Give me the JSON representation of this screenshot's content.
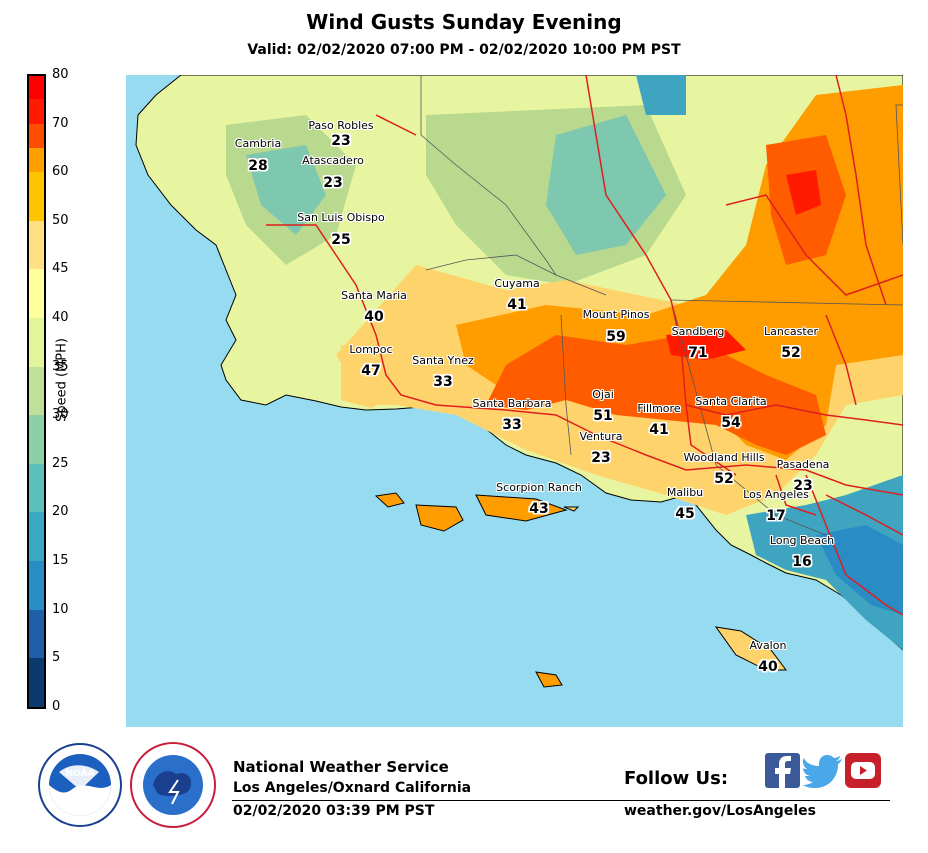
{
  "title": "Wind Gusts Sunday Evening",
  "subtitle": "Valid: 02/02/2020 07:00 PM - 02/02/2020 10:00 PM PST",
  "legend": {
    "unit_label": "Speed (MPH)",
    "ticks": [
      "0",
      "5",
      "10",
      "15",
      "20",
      "25",
      "30",
      "35",
      "40",
      "45",
      "50",
      "60",
      "70",
      "80"
    ],
    "colors": [
      "#0b3a6e",
      "#1f5fa8",
      "#2a8cc4",
      "#3aa9c4",
      "#5ec0bb",
      "#8fcfa8",
      "#bfe09a",
      "#e3f59a",
      "#ffff9e",
      "#ffe082",
      "#ffc400",
      "#ffa000",
      "#ff6000",
      "#ff1a00"
    ]
  },
  "map": {
    "colors": {
      "ocean": "#96dbef",
      "land_light": "#e8f5a0",
      "land_pale": "#ffff99",
      "land_green": "#b9d98e",
      "land_teal": "#7fc8b0",
      "land_blue": "#3ea4c0",
      "gust_yellow": "#ffd36b",
      "gust_orange": "#ff9c00",
      "gust_dark_orange": "#ff5c00",
      "gust_red": "#ff1a00",
      "road": "#dd1f1f",
      "border": "#555555"
    },
    "stations": [
      {
        "name": "Paso Robles",
        "value": "23"
      },
      {
        "name": "Cambria",
        "value": "28"
      },
      {
        "name": "Atascadero",
        "value": "23"
      },
      {
        "name": "San Luis Obispo",
        "value": "25"
      },
      {
        "name": "Cuyama",
        "value": "41"
      },
      {
        "name": "Santa Maria",
        "value": "40"
      },
      {
        "name": "Mount Pinos",
        "value": "59"
      },
      {
        "name": "Sandberg",
        "value": "71"
      },
      {
        "name": "Lancaster",
        "value": "52"
      },
      {
        "name": "Lompoc",
        "value": "47"
      },
      {
        "name": "Santa Ynez",
        "value": "33"
      },
      {
        "name": "Ojai",
        "value": "51"
      },
      {
        "name": "Santa Barbara",
        "value": "33"
      },
      {
        "name": "Fillmore",
        "value": "41"
      },
      {
        "name": "Santa Clarita",
        "value": "54"
      },
      {
        "name": "Ventura",
        "value": "23"
      },
      {
        "name": "Woodland Hills",
        "value": "52"
      },
      {
        "name": "Pasadena",
        "value": "23"
      },
      {
        "name": "Scorpion Ranch",
        "value": "43"
      },
      {
        "name": "Malibu",
        "value": "45"
      },
      {
        "name": "Los Angeles",
        "value": "17"
      },
      {
        "name": "Long Beach",
        "value": "16"
      },
      {
        "name": "Avalon",
        "value": "40"
      }
    ]
  },
  "footer": {
    "org": "National Weather Service",
    "office": "Los Angeles/Oxnard California",
    "issued": "02/02/2020 03:39 PM PST",
    "follow_label": "Follow Us:",
    "website": "weather.gov/LosAngeles",
    "social": [
      "facebook",
      "twitter",
      "youtube"
    ],
    "logos": [
      "noaa-logo",
      "nws-logo"
    ]
  }
}
